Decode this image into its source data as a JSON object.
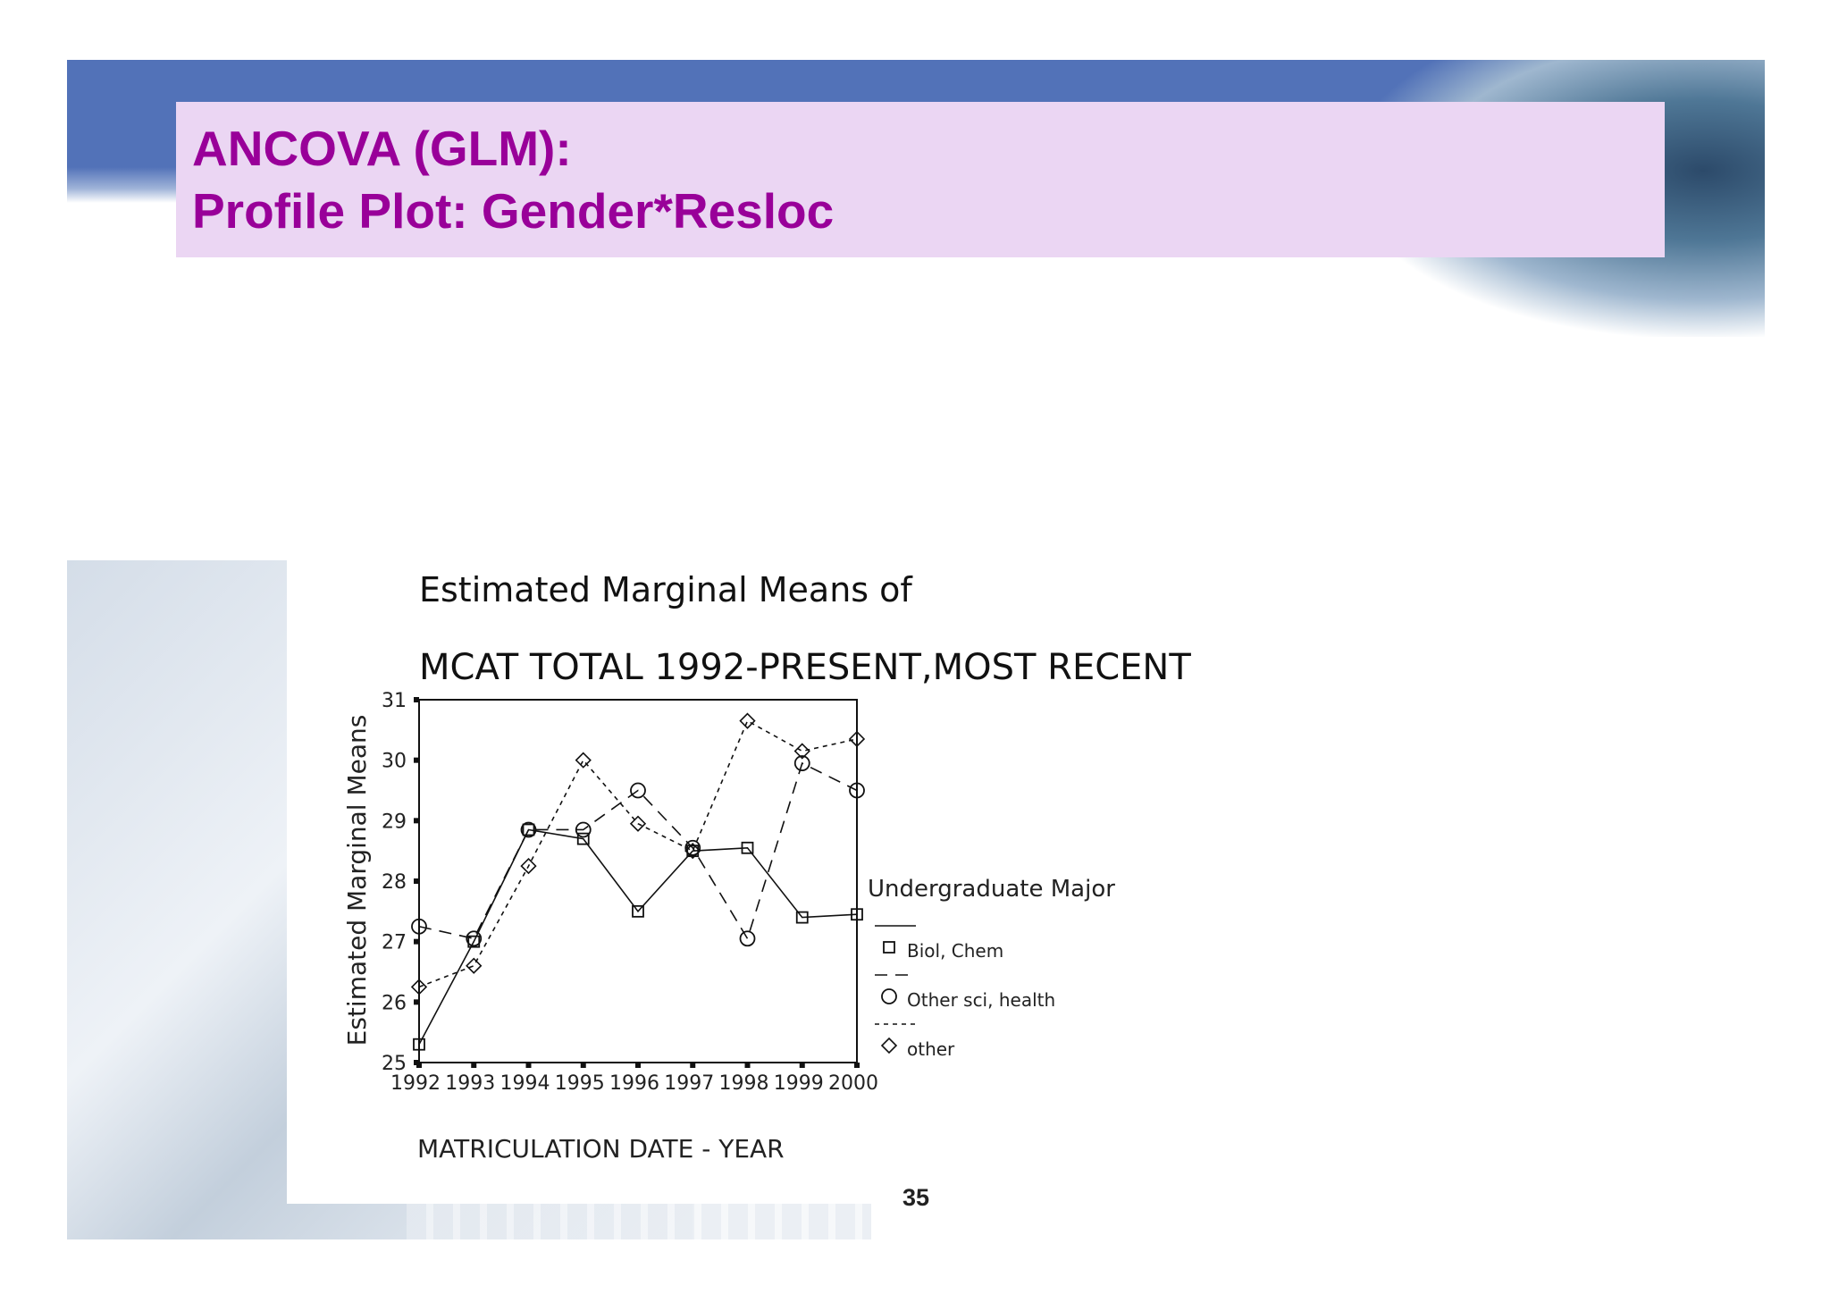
{
  "slide": {
    "title_line1": "ANCOVA (GLM):",
    "title_line2": "Profile Plot: Gender*Resloc",
    "page_number": "35",
    "title_color": "#990099",
    "title_bg": "#ebd6f3",
    "band_color": "#5272b8"
  },
  "chart_data": {
    "type": "line",
    "title_line1": "Estimated Marginal Means of",
    "title_line2": "MCAT TOTAL 1992-PRESENT,MOST RECENT",
    "xlabel": "MATRICULATION DATE - YEAR",
    "ylabel": "Estimated Marginal Means",
    "x": [
      "1992",
      "1993",
      "1994",
      "1995",
      "1996",
      "1997",
      "1998",
      "1999",
      "2000"
    ],
    "ylim": [
      25,
      31
    ],
    "yticks": [
      "25",
      "26",
      "27",
      "28",
      "29",
      "30",
      "31"
    ],
    "grid": false,
    "legend_title": "Undergraduate Major",
    "legend_position": "right",
    "series": [
      {
        "name": "Biol, Chem",
        "marker": "square",
        "line": "solid",
        "values": [
          25.3,
          27.0,
          28.85,
          28.7,
          27.5,
          28.5,
          28.55,
          27.4,
          27.45
        ]
      },
      {
        "name": "Other sci, health",
        "marker": "circle",
        "line": "dashed",
        "values": [
          27.25,
          27.05,
          28.85,
          28.85,
          29.5,
          28.55,
          27.05,
          29.95,
          29.5
        ]
      },
      {
        "name": "other",
        "marker": "diamond",
        "line": "dotted",
        "values": [
          26.25,
          26.6,
          28.25,
          30.0,
          28.95,
          28.5,
          30.65,
          30.15,
          30.35
        ]
      }
    ]
  }
}
